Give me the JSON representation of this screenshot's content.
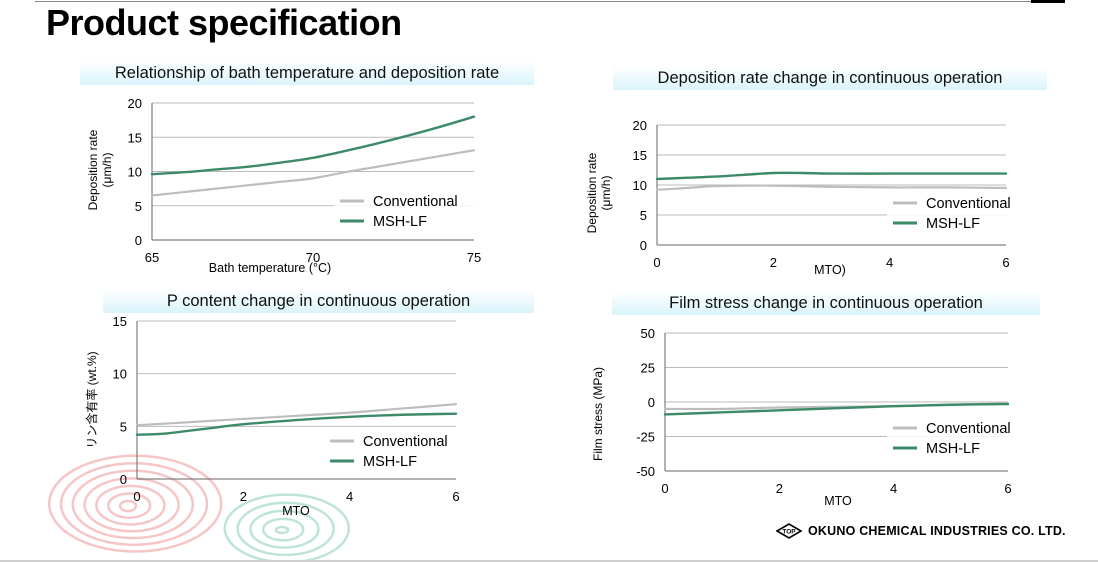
{
  "page": {
    "title": "Product specification",
    "company_name": "OKUNO CHEMICAL INDUSTRIES CO. LTD.",
    "logo_text": "TOP"
  },
  "colors": {
    "conventional": "#bdbdbd",
    "msh_lf": "#3d8a68",
    "grid": "#bbbbbb",
    "title_band": "#d9f4fb"
  },
  "chart_data": [
    {
      "type": "line",
      "title": "Relationship of bath temperature and deposition rate",
      "xlabel": "Bath temperature (°C)",
      "ylabel_lines": [
        "Deposition rate",
        "(μm/h)"
      ],
      "xlim": [
        65,
        75
      ],
      "ylim": [
        0,
        20
      ],
      "x_ticks": [
        "65",
        "70",
        "75"
      ],
      "y_ticks": [
        "0",
        "5",
        "10",
        "15",
        "20"
      ],
      "grid": true,
      "legend_position": "bottom-right",
      "series": [
        {
          "name": "Conventional",
          "x": [
            65,
            66,
            67,
            68,
            69,
            70,
            71,
            72,
            73,
            74,
            75
          ],
          "y": [
            6.5,
            7.0,
            7.5,
            8.0,
            8.5,
            9.0,
            9.9,
            10.7,
            11.5,
            12.3,
            13.1
          ]
        },
        {
          "name": "MSH-LF",
          "x": [
            65,
            66,
            67,
            68,
            69,
            70,
            71,
            72,
            73,
            74,
            75
          ],
          "y": [
            9.6,
            9.9,
            10.3,
            10.7,
            11.3,
            12.0,
            13.0,
            14.1,
            15.3,
            16.6,
            18.0
          ]
        }
      ]
    },
    {
      "type": "line",
      "title": "Deposition rate change in continuous operation",
      "xlabel": "MTO)",
      "ylabel_lines": [
        "Deposition rate",
        "(μm/h)"
      ],
      "xlim": [
        0,
        6
      ],
      "ylim": [
        0,
        20
      ],
      "x_ticks": [
        "0",
        "2",
        "4",
        "6"
      ],
      "y_ticks": [
        "0",
        "5",
        "10",
        "15",
        "20"
      ],
      "grid": true,
      "legend_position": "bottom-right",
      "series": [
        {
          "name": "Conventional",
          "x": [
            0,
            0.5,
            1,
            2,
            3,
            4,
            5,
            6
          ],
          "y": [
            9.2,
            9.5,
            9.8,
            9.9,
            9.7,
            9.6,
            9.6,
            9.5
          ]
        },
        {
          "name": "MSH-LF",
          "x": [
            0,
            0.5,
            1,
            1.5,
            2,
            2.5,
            3,
            4,
            5,
            6
          ],
          "y": [
            11.0,
            11.2,
            11.4,
            11.7,
            12.0,
            12.0,
            11.9,
            11.9,
            11.9,
            11.9
          ]
        }
      ]
    },
    {
      "type": "line",
      "title": "P content change in continuous operation",
      "xlabel": "MTO",
      "ylabel_lines": [
        "リン含有率 (wt.%)"
      ],
      "xlim": [
        0,
        6
      ],
      "ylim": [
        0,
        15
      ],
      "x_ticks": [
        "0",
        "2",
        "4",
        "6"
      ],
      "y_ticks": [
        "0",
        "5",
        "10",
        "15"
      ],
      "grid": true,
      "legend_position": "bottom-right",
      "series": [
        {
          "name": "Conventional",
          "x": [
            0,
            1,
            2,
            3,
            4,
            5,
            6
          ],
          "y": [
            5.1,
            5.4,
            5.7,
            6.0,
            6.3,
            6.7,
            7.1
          ]
        },
        {
          "name": "MSH-LF",
          "x": [
            0,
            0.5,
            1,
            1.5,
            2,
            3,
            4,
            5,
            6
          ],
          "y": [
            4.2,
            4.3,
            4.6,
            4.9,
            5.2,
            5.6,
            5.9,
            6.1,
            6.2
          ]
        }
      ]
    },
    {
      "type": "line",
      "title": "Film stress change in continuous operation",
      "xlabel": "MTO",
      "ylabel_lines": [
        "Film stress (MPa)"
      ],
      "xlim": [
        0,
        6
      ],
      "ylim": [
        -50,
        50
      ],
      "x_ticks": [
        "0",
        "2",
        "4",
        "6"
      ],
      "y_ticks": [
        "-50",
        "-25",
        "0",
        "25",
        "50"
      ],
      "grid": true,
      "legend_position": "bottom-right",
      "series": [
        {
          "name": "Conventional",
          "x": [
            0,
            1,
            2,
            3,
            4,
            5,
            6
          ],
          "y": [
            -5,
            -5,
            -4,
            -3.5,
            -3,
            -2,
            -1
          ]
        },
        {
          "name": "MSH-LF",
          "x": [
            0,
            1,
            2,
            3,
            4,
            5,
            6
          ],
          "y": [
            -9,
            -7.5,
            -6,
            -4.5,
            -3,
            -2,
            -1.5
          ]
        }
      ]
    }
  ]
}
